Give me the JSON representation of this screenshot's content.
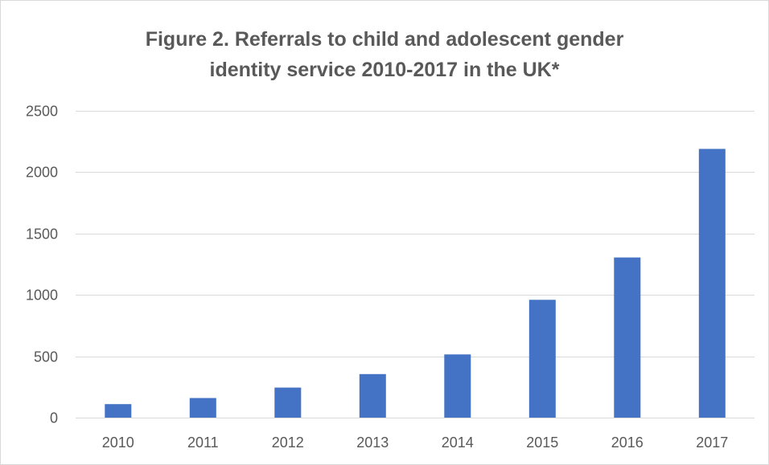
{
  "chart_data": {
    "type": "bar",
    "title_lines": [
      "Figure 2. Referrals to child and adolescent gender",
      "identity service 2010-2017 in the UK*"
    ],
    "categories": [
      "2010",
      "2011",
      "2012",
      "2013",
      "2014",
      "2015",
      "2016",
      "2017"
    ],
    "values": [
      110,
      160,
      245,
      355,
      515,
      960,
      1305,
      2190
    ],
    "ylim": [
      0,
      2500
    ],
    "yticks": [
      0,
      500,
      1000,
      1500,
      2000,
      2500
    ],
    "grid": true,
    "legend": "none",
    "bar_color": "#4472c4",
    "grid_color": "#d9d9d9"
  }
}
